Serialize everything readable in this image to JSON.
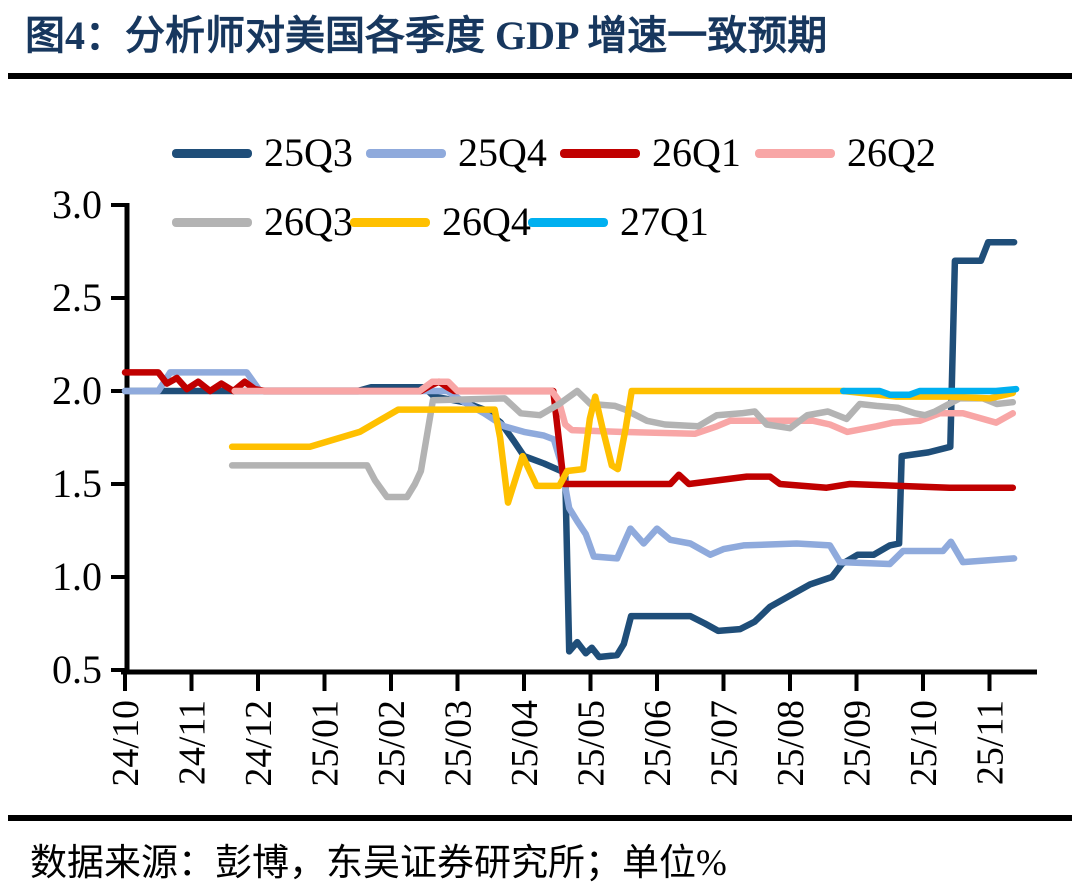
{
  "title": {
    "text": "图4：分析师对美国各季度 GDP 增速一致预期"
  },
  "footer": {
    "text": "数据来源：彭博，东吴证券研究所；单位%"
  },
  "colors": {
    "title_navy": "#17375e",
    "rule_black": "#000000",
    "axis_black": "#000000"
  },
  "chart_data": {
    "type": "line",
    "title": "分析师对美国各季度 GDP 增速一致预期",
    "unit": "%",
    "xlabel": "",
    "ylabel": "",
    "ylim": [
      0.5,
      3.0
    ],
    "y_ticks": [
      3.0,
      2.5,
      2.0,
      1.5,
      1.0,
      0.5
    ],
    "y_tick_labels": [
      "3.0",
      "2.5",
      "2.0",
      "1.5",
      "1.0",
      "0.5"
    ],
    "x_tick_labels": [
      "24/10",
      "24/11",
      "24/12",
      "25/01",
      "25/02",
      "25/03",
      "25/04",
      "25/05",
      "25/06",
      "25/07",
      "25/08",
      "25/09",
      "25/10",
      "25/11"
    ],
    "x_unit": "months since 2024/10 (weekly consensus readings)",
    "grid": false,
    "legend_position": "top-left, two rows",
    "series": [
      {
        "name": "25Q3",
        "color": "#1f4e79",
        "points": [
          [
            0,
            2.0
          ],
          [
            3.5,
            2.0
          ],
          [
            3.7,
            2.02
          ],
          [
            4.5,
            2.02
          ],
          [
            4.65,
            1.97
          ],
          [
            5.1,
            1.94
          ],
          [
            5.4,
            1.9
          ],
          [
            5.65,
            1.83
          ],
          [
            5.85,
            1.73
          ],
          [
            6.0,
            1.65
          ],
          [
            6.3,
            1.61
          ],
          [
            6.62,
            1.56
          ],
          [
            6.68,
            0.6
          ],
          [
            6.8,
            0.65
          ],
          [
            6.93,
            0.59
          ],
          [
            7.02,
            0.62
          ],
          [
            7.13,
            0.57
          ],
          [
            7.4,
            0.58
          ],
          [
            7.5,
            0.64
          ],
          [
            7.61,
            0.79
          ],
          [
            8.5,
            0.79
          ],
          [
            8.72,
            0.75
          ],
          [
            8.92,
            0.71
          ],
          [
            9.25,
            0.72
          ],
          [
            9.47,
            0.76
          ],
          [
            9.7,
            0.84
          ],
          [
            10.0,
            0.9
          ],
          [
            10.3,
            0.96
          ],
          [
            10.63,
            1.0
          ],
          [
            10.78,
            1.07
          ],
          [
            11.02,
            1.12
          ],
          [
            11.26,
            1.12
          ],
          [
            11.5,
            1.17
          ],
          [
            11.64,
            1.18
          ],
          [
            11.68,
            1.65
          ],
          [
            12.08,
            1.67
          ],
          [
            12.41,
            1.7
          ],
          [
            12.48,
            2.7
          ],
          [
            12.87,
            2.7
          ],
          [
            12.98,
            2.8
          ],
          [
            13.37,
            2.8
          ]
        ]
      },
      {
        "name": "25Q4",
        "color": "#8faadc",
        "points": [
          [
            0,
            2.0
          ],
          [
            0.5,
            2.0
          ],
          [
            0.68,
            2.1
          ],
          [
            1.83,
            2.1
          ],
          [
            2.03,
            2.0
          ],
          [
            4.85,
            2.0
          ],
          [
            5.1,
            1.94
          ],
          [
            5.4,
            1.88
          ],
          [
            5.7,
            1.81
          ],
          [
            6.0,
            1.78
          ],
          [
            6.3,
            1.76
          ],
          [
            6.45,
            1.74
          ],
          [
            6.55,
            1.62
          ],
          [
            6.68,
            1.37
          ],
          [
            6.8,
            1.3
          ],
          [
            6.93,
            1.23
          ],
          [
            7.05,
            1.11
          ],
          [
            7.4,
            1.1
          ],
          [
            7.6,
            1.26
          ],
          [
            7.8,
            1.18
          ],
          [
            8.0,
            1.26
          ],
          [
            8.2,
            1.2
          ],
          [
            8.5,
            1.18
          ],
          [
            8.8,
            1.12
          ],
          [
            9.0,
            1.15
          ],
          [
            9.3,
            1.17
          ],
          [
            10.1,
            1.18
          ],
          [
            10.6,
            1.17
          ],
          [
            10.75,
            1.08
          ],
          [
            11.5,
            1.07
          ],
          [
            11.7,
            1.14
          ],
          [
            12.3,
            1.14
          ],
          [
            12.42,
            1.19
          ],
          [
            12.6,
            1.08
          ],
          [
            13.37,
            1.1
          ]
        ]
      },
      {
        "name": "26Q1",
        "color": "#c00000",
        "points": [
          [
            0,
            2.1
          ],
          [
            0.5,
            2.1
          ],
          [
            0.63,
            2.04
          ],
          [
            0.78,
            2.07
          ],
          [
            0.93,
            2.01
          ],
          [
            1.1,
            2.05
          ],
          [
            1.28,
            2.0
          ],
          [
            1.45,
            2.04
          ],
          [
            1.63,
            2.0
          ],
          [
            1.8,
            2.05
          ],
          [
            1.95,
            2.01
          ],
          [
            2.1,
            2.0
          ],
          [
            4.45,
            2.0
          ],
          [
            4.6,
            2.03
          ],
          [
            4.72,
            2.05
          ],
          [
            4.85,
            2.02
          ],
          [
            4.95,
            2.0
          ],
          [
            6.44,
            2.0
          ],
          [
            6.6,
            1.5
          ],
          [
            8.2,
            1.5
          ],
          [
            8.33,
            1.55
          ],
          [
            8.48,
            1.5
          ],
          [
            9.35,
            1.54
          ],
          [
            9.7,
            1.54
          ],
          [
            9.85,
            1.5
          ],
          [
            10.55,
            1.48
          ],
          [
            10.9,
            1.5
          ],
          [
            12.4,
            1.48
          ],
          [
            13.35,
            1.48
          ]
        ]
      },
      {
        "name": "26Q2",
        "color": "#f8a6a6",
        "points": [
          [
            1.65,
            2.0
          ],
          [
            4.43,
            2.0
          ],
          [
            4.62,
            2.05
          ],
          [
            4.86,
            2.05
          ],
          [
            5.0,
            2.0
          ],
          [
            6.42,
            2.0
          ],
          [
            6.52,
            1.95
          ],
          [
            6.62,
            1.82
          ],
          [
            6.72,
            1.79
          ],
          [
            7.44,
            1.78
          ],
          [
            8.57,
            1.77
          ],
          [
            8.9,
            1.81
          ],
          [
            9.1,
            1.84
          ],
          [
            10.35,
            1.84
          ],
          [
            10.6,
            1.82
          ],
          [
            10.86,
            1.78
          ],
          [
            11.3,
            1.81
          ],
          [
            11.55,
            1.83
          ],
          [
            11.95,
            1.84
          ],
          [
            12.25,
            1.88
          ],
          [
            12.6,
            1.88
          ],
          [
            13.1,
            1.83
          ],
          [
            13.35,
            1.88
          ]
        ]
      },
      {
        "name": "26Q3",
        "color": "#b3b3b3",
        "points": [
          [
            1.61,
            1.6
          ],
          [
            3.64,
            1.6
          ],
          [
            3.76,
            1.52
          ],
          [
            3.94,
            1.43
          ],
          [
            4.24,
            1.43
          ],
          [
            4.36,
            1.5
          ],
          [
            4.45,
            1.57
          ],
          [
            4.63,
            1.95
          ],
          [
            5.71,
            1.96
          ],
          [
            5.95,
            1.88
          ],
          [
            6.24,
            1.87
          ],
          [
            6.53,
            1.93
          ],
          [
            6.8,
            2.0
          ],
          [
            7.0,
            1.93
          ],
          [
            7.37,
            1.92
          ],
          [
            7.52,
            1.9
          ],
          [
            7.85,
            1.84
          ],
          [
            8.12,
            1.82
          ],
          [
            8.62,
            1.81
          ],
          [
            8.9,
            1.87
          ],
          [
            9.27,
            1.88
          ],
          [
            9.47,
            1.89
          ],
          [
            9.65,
            1.82
          ],
          [
            10.0,
            1.8
          ],
          [
            10.26,
            1.87
          ],
          [
            10.57,
            1.89
          ],
          [
            10.85,
            1.85
          ],
          [
            11.05,
            1.93
          ],
          [
            11.3,
            1.92
          ],
          [
            11.62,
            1.91
          ],
          [
            11.88,
            1.88
          ],
          [
            12.03,
            1.87
          ],
          [
            12.18,
            1.89
          ],
          [
            12.55,
            1.96
          ],
          [
            12.9,
            1.96
          ],
          [
            13.11,
            1.93
          ],
          [
            13.35,
            1.94
          ]
        ]
      },
      {
        "name": "26Q4",
        "color": "#ffc000",
        "points": [
          [
            1.61,
            1.7
          ],
          [
            2.78,
            1.7
          ],
          [
            3.53,
            1.78
          ],
          [
            4.11,
            1.9
          ],
          [
            5.56,
            1.9
          ],
          [
            5.64,
            1.75
          ],
          [
            5.76,
            1.4
          ],
          [
            5.98,
            1.65
          ],
          [
            6.19,
            1.49
          ],
          [
            6.53,
            1.49
          ],
          [
            6.65,
            1.57
          ],
          [
            6.89,
            1.58
          ],
          [
            6.99,
            1.85
          ],
          [
            7.07,
            1.97
          ],
          [
            7.18,
            1.8
          ],
          [
            7.32,
            1.6
          ],
          [
            7.41,
            1.58
          ],
          [
            7.53,
            1.8
          ],
          [
            7.62,
            2.0
          ],
          [
            10.8,
            2.0
          ],
          [
            11.6,
            1.97
          ],
          [
            12.4,
            1.97
          ],
          [
            13.0,
            1.96
          ],
          [
            13.35,
            1.99
          ]
        ]
      },
      {
        "name": "27Q1",
        "color": "#00b0f0",
        "points": [
          [
            10.8,
            2.0
          ],
          [
            11.35,
            2.0
          ],
          [
            11.5,
            1.98
          ],
          [
            11.8,
            1.98
          ],
          [
            11.95,
            2.0
          ],
          [
            13.1,
            2.0
          ],
          [
            13.4,
            2.01
          ]
        ]
      }
    ]
  },
  "legend": {
    "row1": [
      "25Q3",
      "25Q4",
      "26Q1",
      "26Q2"
    ],
    "row2": [
      "26Q3",
      "26Q4",
      "27Q1"
    ]
  }
}
